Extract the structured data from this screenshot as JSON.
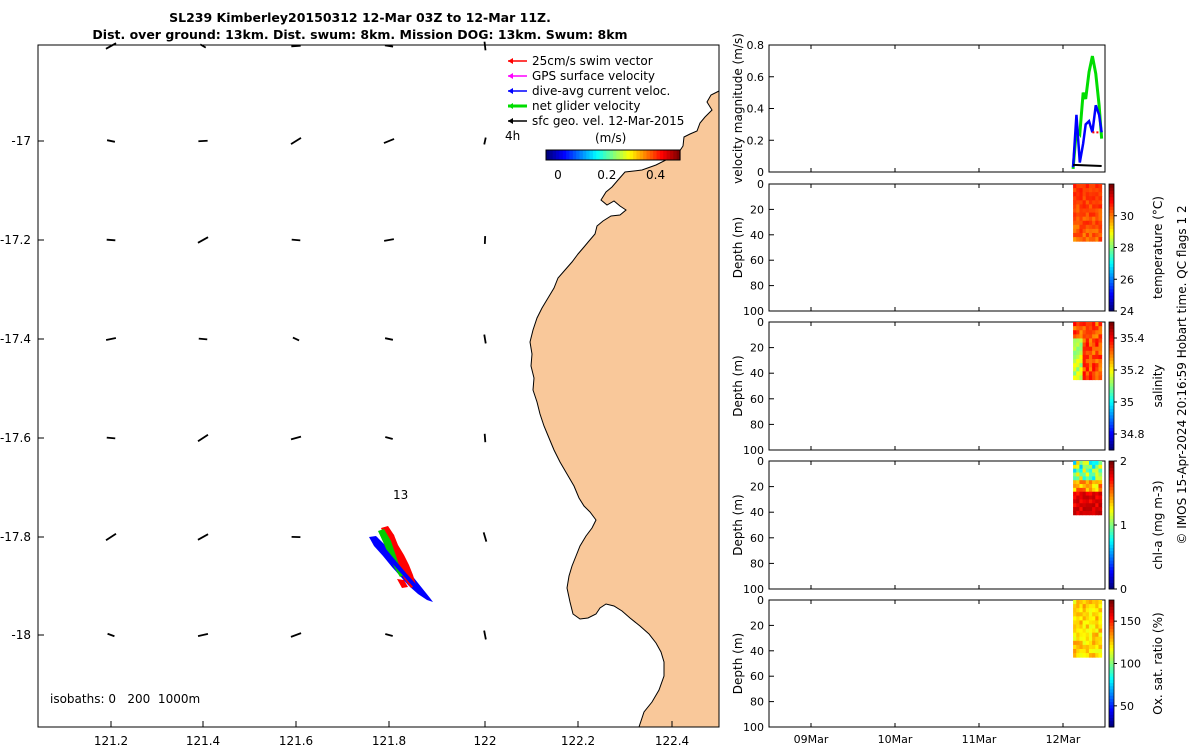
{
  "title": {
    "line1": "SL239 Kimberley20150312 12-Mar 03Z to 12-Mar 11Z.",
    "line2": "Dist. over ground: 13km. Dist. swum: 8km. Mission DOG: 13km. Swum: 8km"
  },
  "map": {
    "lon_ticks": [
      "121.2",
      "121.4",
      "121.6",
      "121.8",
      "122",
      "122.2",
      "122.4"
    ],
    "lat_ticks": [
      "-17",
      "-17.2",
      "-17.4",
      "-17.6",
      "-17.8",
      "-18"
    ],
    "legend": [
      {
        "label": "25cm/s swim vector",
        "color": "#ff0000"
      },
      {
        "label": "GPS surface velocity",
        "color": "#ff00ff"
      },
      {
        "label": "dive-avg current veloc.",
        "color": "#0000ff"
      },
      {
        "label": "net glider velocity",
        "color": "#00dd00"
      },
      {
        "label": "sfc geo. vel. 12-Mar-2015",
        "color": "#000000"
      }
    ],
    "legend_extra": "4h",
    "colorbar_label": "(m/s)",
    "colorbar_ticks": [
      "0",
      "0.2",
      "0.4"
    ],
    "track_label": "13",
    "isobaths": "isobaths: 0   200  1000m",
    "land_color": "#f9c89a"
  },
  "chart_data": [
    {
      "type": "line",
      "title": "",
      "ylabel": "velocity magnitude (m/s)",
      "ylim": [
        0,
        0.8
      ],
      "yticks": [
        "0",
        "0.2",
        "0.4",
        "0.6",
        "0.8"
      ],
      "xlim": [
        8.5,
        12.5
      ],
      "x_ticks": [
        "09Mar",
        "10Mar",
        "11Mar",
        "12Mar"
      ],
      "series": [
        {
          "name": "net glider velocity",
          "color": "#00dd00",
          "x": [
            12.12,
            12.16,
            12.2,
            12.24,
            12.27,
            12.31,
            12.35,
            12.39,
            12.43,
            12.46
          ],
          "values": [
            0.02,
            0.27,
            0.24,
            0.5,
            0.46,
            0.63,
            0.73,
            0.62,
            0.42,
            0.21
          ]
        },
        {
          "name": "dive-avg current veloc.",
          "color": "#0000ff",
          "x": [
            12.12,
            12.16,
            12.2,
            12.24,
            12.27,
            12.31,
            12.35,
            12.39,
            12.43,
            12.46
          ],
          "values": [
            0.03,
            0.36,
            0.06,
            0.18,
            0.3,
            0.32,
            0.25,
            0.42,
            0.36,
            0.25
          ]
        },
        {
          "name": "25cm/s swim vector",
          "color": "#ff0000",
          "x": [
            12.35,
            12.39,
            12.43
          ],
          "values": [
            0.25,
            0.25,
            0.25
          ]
        },
        {
          "name": "sfc geo. vel. 12-Mar-2015",
          "color": "#000000",
          "x": [
            12.12,
            12.46
          ],
          "values": [
            0.045,
            0.038
          ]
        }
      ]
    },
    {
      "type": "heatmap",
      "ylabel": "Depth (m)",
      "colorbar_label": "temperature (°C)",
      "ylim": [
        100,
        0
      ],
      "yticks": [
        "0",
        "20",
        "40",
        "60",
        "80",
        "100"
      ],
      "clim": [
        24,
        32
      ],
      "cticks": [
        "24",
        "26",
        "28",
        "30"
      ],
      "x_range": [
        12.12,
        12.46
      ],
      "depth_range": [
        0,
        45
      ],
      "value_range": [
        29.5,
        31
      ]
    },
    {
      "type": "heatmap",
      "ylabel": "Depth (m)",
      "colorbar_label": "salinity",
      "ylim": [
        100,
        0
      ],
      "yticks": [
        "0",
        "20",
        "40",
        "60",
        "80",
        "100"
      ],
      "clim": [
        34.7,
        35.5
      ],
      "cticks": [
        "34.8",
        "35",
        "35.2",
        "35.4"
      ],
      "x_range": [
        12.12,
        12.46
      ],
      "depth_range": [
        0,
        45
      ],
      "value_range": [
        35.0,
        35.4
      ]
    },
    {
      "type": "heatmap",
      "ylabel": "Depth (m)",
      "colorbar_label": "chl-a (mg m-3)",
      "ylim": [
        100,
        0
      ],
      "yticks": [
        "0",
        "20",
        "40",
        "60",
        "80",
        "100"
      ],
      "clim": [
        0,
        2
      ],
      "cticks": [
        "0",
        "1",
        "2"
      ],
      "x_range": [
        12.12,
        12.46
      ],
      "depth_range": [
        0,
        42
      ],
      "value_range": [
        0.5,
        1.9
      ]
    },
    {
      "type": "heatmap",
      "ylabel": "Depth (m)",
      "colorbar_label": "Ox. sat. ratio (%)",
      "ylim": [
        100,
        0
      ],
      "yticks": [
        "0",
        "20",
        "40",
        "60",
        "80",
        "100"
      ],
      "clim": [
        25,
        175
      ],
      "cticks": [
        "50",
        "100",
        "150"
      ],
      "x_range": [
        12.12,
        12.46
      ],
      "depth_range": [
        0,
        45
      ],
      "value_range": [
        115,
        135
      ]
    }
  ],
  "credit": "© IMOS 15-Apr-2024 20:16:59 Hobart time. QC flags 1  2"
}
